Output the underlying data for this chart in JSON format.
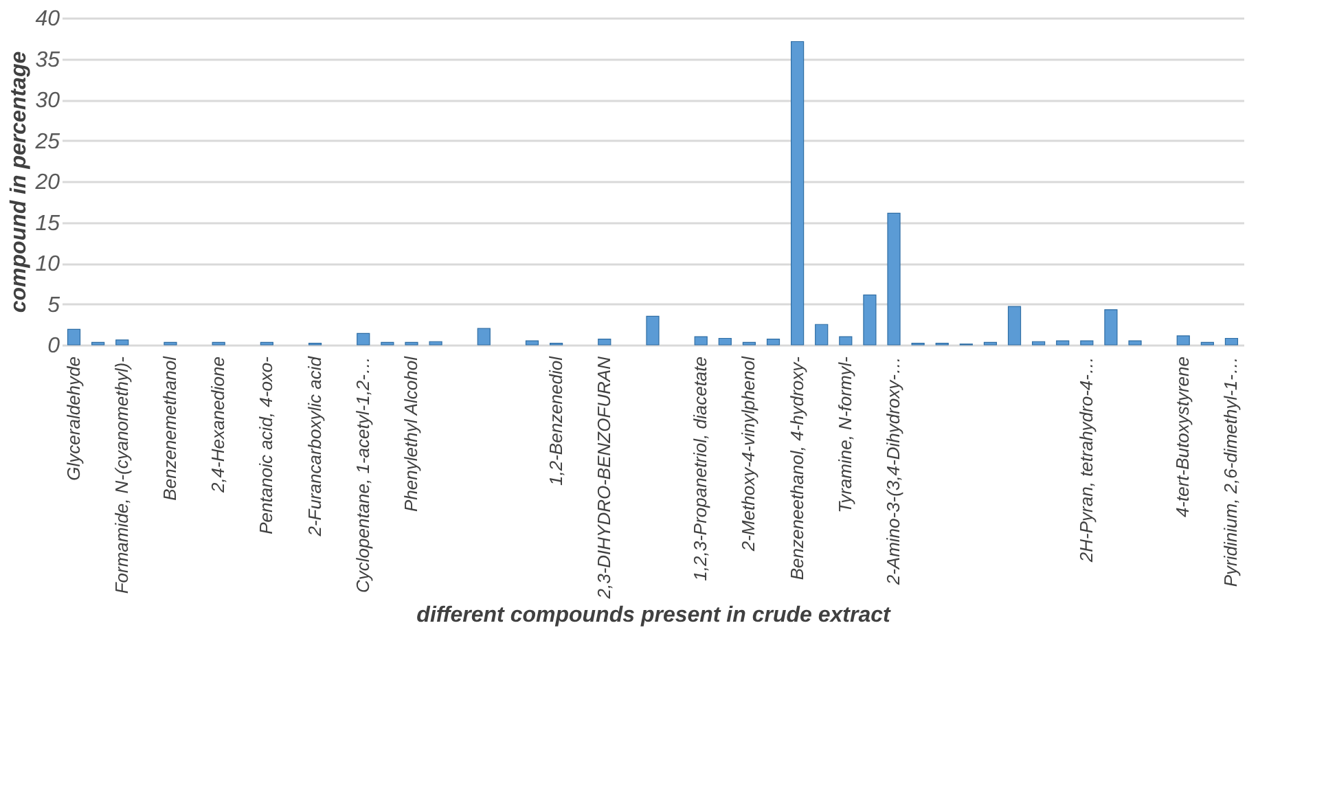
{
  "chart_data": {
    "type": "bar",
    "xlabel": "different compounds present in crude extract",
    "ylabel": "compound in percentage",
    "categories": [
      "Glyceraldehyde",
      null,
      "Formamide, N-(cyanomethyl)-",
      null,
      "Benzenemethanol",
      null,
      "2,4-Hexanedione",
      null,
      "Pentanoic acid, 4-oxo-",
      null,
      "2-Furancarboxylic acid",
      null,
      "Cyclopentane, 1-acetyl-1,2-…",
      null,
      "Phenylethyl Alcohol",
      null,
      null,
      null,
      null,
      null,
      "1,2-Benzenediol",
      null,
      "2,3-DIHYDRO-BENZOFURAN",
      null,
      null,
      null,
      "1,2,3-Propanetriol, diacetate",
      null,
      "2-Methoxy-4-vinylphenol",
      null,
      "Benzeneethanol, 4-hydroxy-",
      null,
      "Tyramine, N-formyl-",
      null,
      "2-Amino-3-(3,4-Dihydroxy-…",
      null,
      null,
      null,
      null,
      null,
      null,
      null,
      "2H-Pyran, tetrahydro-4-…",
      null,
      null,
      null,
      "4-tert-Butoxystyrene",
      null,
      "Pyridinium, 2,6-dimethyl-1-…"
    ],
    "values": [
      1.9,
      0.3,
      0.6,
      null,
      0.3,
      null,
      0.3,
      null,
      0.3,
      null,
      0.2,
      null,
      1.4,
      0.3,
      0.3,
      0.4,
      null,
      2.0,
      null,
      0.5,
      0.2,
      null,
      0.7,
      null,
      3.5,
      null,
      1.0,
      0.8,
      0.3,
      0.7,
      37.1,
      2.5,
      1.0,
      6.1,
      16.1,
      0.2,
      0.2,
      0.1,
      0.3,
      4.7,
      0.4,
      0.5,
      0.5,
      4.3,
      0.5,
      null,
      1.1,
      0.3,
      0.8
    ],
    "color": "#5b9bd5",
    "ylim": [
      0,
      40
    ],
    "yticks": [
      0,
      5,
      10,
      15,
      20,
      25,
      30,
      35,
      40
    ],
    "grid": "y"
  }
}
